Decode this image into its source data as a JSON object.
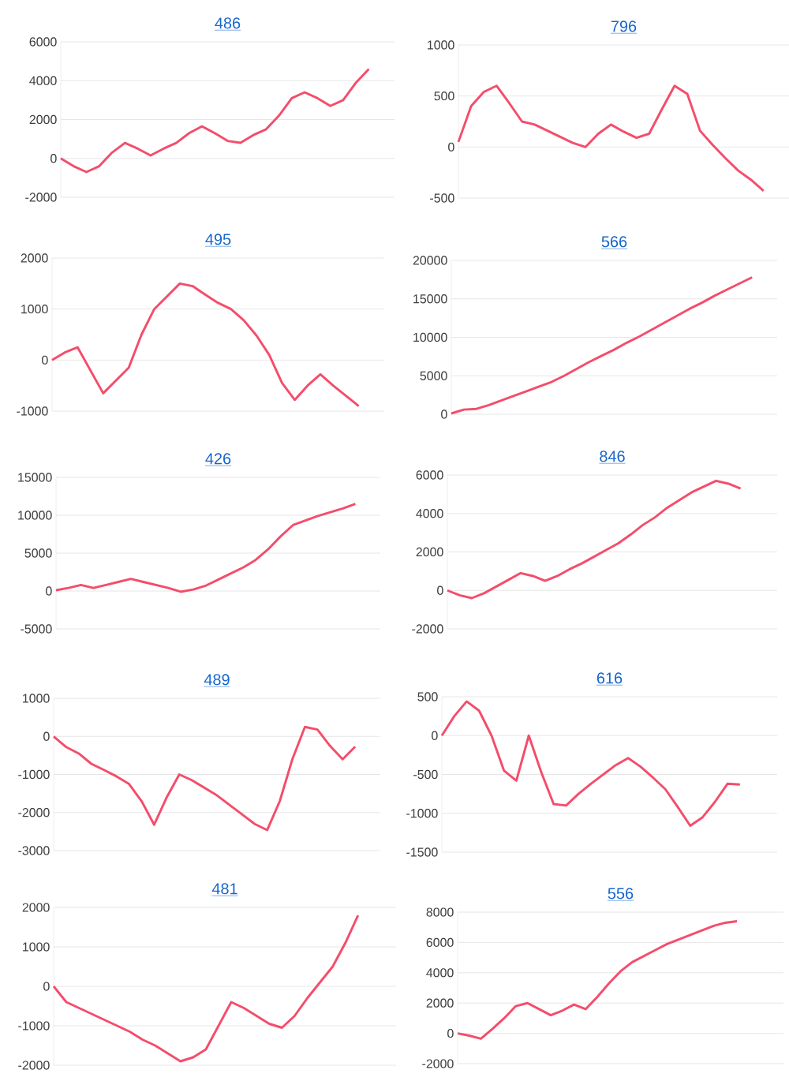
{
  "chart_data": [
    {
      "type": "line",
      "title": "486",
      "categories": [
        null,
        null,
        null,
        null,
        null,
        null,
        null,
        null,
        null,
        null,
        null,
        null,
        null,
        null,
        null,
        null,
        null,
        null,
        null,
        null,
        null,
        null,
        null,
        null,
        null,
        null,
        null
      ],
      "values": [
        0,
        -400,
        -700,
        -400,
        300,
        800,
        500,
        150,
        500,
        800,
        1300,
        1650,
        1300,
        900,
        800,
        1200,
        1500,
        2200,
        3100,
        3400,
        3100,
        2700,
        3000,
        3900,
        4600,
        null,
        null
      ],
      "color": "#f44d6b",
      "ylim": [
        -2000,
        6000
      ],
      "yticks": [
        -2000,
        0,
        2000,
        4000,
        6000
      ],
      "grid": "y",
      "tick_labels": "y"
    },
    {
      "type": "line",
      "title": "796",
      "categories": [
        null,
        null,
        null,
        null,
        null,
        null,
        null,
        null,
        null,
        null,
        null,
        null,
        null,
        null,
        null,
        null,
        null,
        null,
        null,
        null,
        null,
        null,
        null,
        null,
        null,
        null,
        null
      ],
      "values": [
        50,
        400,
        540,
        600,
        430,
        250,
        220,
        160,
        100,
        40,
        0,
        130,
        220,
        150,
        90,
        130,
        370,
        600,
        520,
        160,
        20,
        -110,
        -230,
        -320,
        -430,
        null,
        null
      ],
      "color": "#f44d6b",
      "ylim": [
        -500,
        1000
      ],
      "yticks": [
        -500,
        0,
        500,
        1000
      ],
      "grid": "y",
      "tick_labels": "y"
    },
    {
      "type": "line",
      "title": "495",
      "categories": [
        null,
        null,
        null,
        null,
        null,
        null,
        null,
        null,
        null,
        null,
        null,
        null,
        null,
        null,
        null,
        null,
        null,
        null,
        null,
        null,
        null,
        null,
        null,
        null,
        null,
        null,
        null
      ],
      "values": [
        0,
        150,
        250,
        -200,
        -650,
        -400,
        -150,
        500,
        1000,
        1250,
        1500,
        1450,
        1280,
        1120,
        1000,
        780,
        480,
        100,
        -450,
        -780,
        -500,
        -280,
        -500,
        -700,
        -900,
        null,
        null
      ],
      "color": "#f44d6b",
      "ylim": [
        -1000,
        2000
      ],
      "yticks": [
        -1000,
        0,
        1000,
        2000
      ],
      "grid": "y",
      "tick_labels": "y"
    },
    {
      "type": "line",
      "title": "566",
      "categories": [
        null,
        null,
        null,
        null,
        null,
        null,
        null,
        null,
        null,
        null,
        null,
        null,
        null,
        null,
        null,
        null,
        null,
        null,
        null,
        null,
        null,
        null,
        null,
        null,
        null,
        null,
        null
      ],
      "values": [
        100,
        600,
        700,
        1200,
        1800,
        2400,
        3000,
        3600,
        4200,
        5000,
        5900,
        6800,
        7600,
        8400,
        9300,
        10100,
        11000,
        11900,
        12800,
        13700,
        14500,
        15400,
        16200,
        17000,
        17800,
        null,
        null
      ],
      "color": "#f44d6b",
      "ylim": [
        0,
        20000
      ],
      "yticks": [
        0,
        5000,
        10000,
        15000,
        20000
      ],
      "grid": "y",
      "tick_labels": "y"
    },
    {
      "type": "line",
      "title": "426",
      "categories": [
        null,
        null,
        null,
        null,
        null,
        null,
        null,
        null,
        null,
        null,
        null,
        null,
        null,
        null,
        null,
        null,
        null,
        null,
        null,
        null,
        null,
        null,
        null,
        null,
        null,
        null,
        null
      ],
      "values": [
        100,
        400,
        800,
        400,
        800,
        1200,
        1600,
        1200,
        800,
        400,
        -100,
        200,
        700,
        1500,
        2300,
        3100,
        4100,
        5500,
        7200,
        8700,
        9300,
        9900,
        10400,
        10900,
        11500,
        null,
        null
      ],
      "color": "#f44d6b",
      "ylim": [
        -5000,
        15000
      ],
      "yticks": [
        -5000,
        0,
        5000,
        10000,
        15000
      ],
      "grid": "y",
      "tick_labels": "y"
    },
    {
      "type": "line",
      "title": "846",
      "categories": [
        null,
        null,
        null,
        null,
        null,
        null,
        null,
        null,
        null,
        null,
        null,
        null,
        null,
        null,
        null,
        null,
        null,
        null,
        null,
        null,
        null,
        null,
        null,
        null,
        null,
        null,
        null,
        null
      ],
      "values": [
        0,
        -250,
        -400,
        -150,
        200,
        550,
        900,
        750,
        500,
        750,
        1100,
        1400,
        1750,
        2100,
        2450,
        2900,
        3400,
        3800,
        4300,
        4700,
        5100,
        5400,
        5700,
        5550,
        5300,
        null,
        null,
        null
      ],
      "color": "#f44d6b",
      "ylim": [
        -2000,
        6000
      ],
      "yticks": [
        -2000,
        0,
        2000,
        4000,
        6000
      ],
      "grid": "y",
      "tick_labels": "y"
    },
    {
      "type": "line",
      "title": "489",
      "categories": [
        null,
        null,
        null,
        null,
        null,
        null,
        null,
        null,
        null,
        null,
        null,
        null,
        null,
        null,
        null,
        null,
        null,
        null,
        null,
        null,
        null,
        null,
        null,
        null,
        null,
        null,
        null
      ],
      "values": [
        0,
        -280,
        -450,
        -720,
        -880,
        -1050,
        -1250,
        -1700,
        -2320,
        -1600,
        -1000,
        -1150,
        -1350,
        -1550,
        -1800,
        -2050,
        -2300,
        -2460,
        -1700,
        -600,
        250,
        180,
        -250,
        -600,
        -270,
        null,
        null
      ],
      "color": "#f44d6b",
      "ylim": [
        -3000,
        1000
      ],
      "yticks": [
        -3000,
        -2000,
        -1000,
        0,
        1000
      ],
      "grid": "y",
      "tick_labels": "y"
    },
    {
      "type": "line",
      "title": "616",
      "categories": [
        null,
        null,
        null,
        null,
        null,
        null,
        null,
        null,
        null,
        null,
        null,
        null,
        null,
        null,
        null,
        null,
        null,
        null,
        null,
        null,
        null,
        null,
        null,
        null,
        null,
        null,
        null,
        null
      ],
      "values": [
        0,
        250,
        440,
        320,
        0,
        -450,
        -580,
        0,
        -470,
        -880,
        -900,
        -750,
        -620,
        -500,
        -380,
        -290,
        -400,
        -540,
        -690,
        -920,
        -1160,
        -1050,
        -850,
        -620,
        -630,
        null,
        null,
        null
      ],
      "color": "#f44d6b",
      "ylim": [
        -1500,
        500
      ],
      "yticks": [
        -1500,
        -1000,
        -500,
        0,
        500
      ],
      "grid": "y",
      "tick_labels": "y"
    },
    {
      "type": "line",
      "title": "481",
      "categories": [
        null,
        null,
        null,
        null,
        null,
        null,
        null,
        null,
        null,
        null,
        null,
        null,
        null,
        null,
        null,
        null,
        null,
        null,
        null,
        null,
        null,
        null,
        null,
        null,
        null,
        null,
        null,
        null
      ],
      "values": [
        0,
        -400,
        -550,
        -700,
        -850,
        -1000,
        -1150,
        -1350,
        -1500,
        -1700,
        -1900,
        -1800,
        -1600,
        -1000,
        -400,
        -550,
        -750,
        -950,
        -1050,
        -750,
        -300,
        100,
        500,
        1100,
        1800,
        null,
        null,
        null
      ],
      "color": "#f44d6b",
      "ylim": [
        -2000,
        2000
      ],
      "yticks": [
        -2000,
        -1000,
        0,
        1000,
        2000
      ],
      "grid": "y",
      "tick_labels": "y"
    },
    {
      "type": "line",
      "title": "556",
      "categories": [
        null,
        null,
        null,
        null,
        null,
        null,
        null,
        null,
        null,
        null,
        null,
        null,
        null,
        null,
        null,
        null,
        null,
        null,
        null,
        null,
        null,
        null,
        null,
        null,
        null,
        null,
        null,
        null,
        null
      ],
      "values": [
        0,
        -150,
        -350,
        300,
        1000,
        1800,
        2000,
        1600,
        1200,
        1500,
        1900,
        1600,
        2400,
        3300,
        4100,
        4700,
        5100,
        5500,
        5900,
        6200,
        6500,
        6800,
        7100,
        7300,
        7400,
        null,
        null,
        null,
        null
      ],
      "color": "#f44d6b",
      "ylim": [
        -2000,
        8000
      ],
      "yticks": [
        -2000,
        0,
        2000,
        4000,
        6000,
        8000
      ],
      "grid": "y",
      "tick_labels": "y"
    }
  ]
}
